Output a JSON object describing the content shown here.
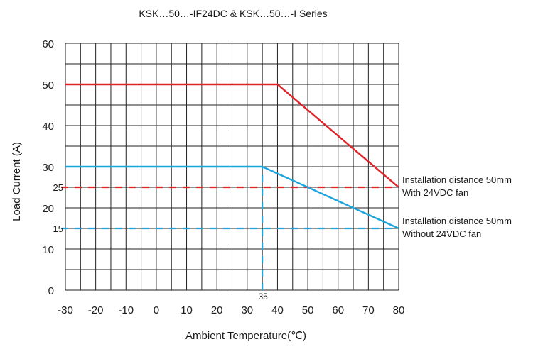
{
  "chart_data": {
    "type": "line",
    "title": "KSK…50…-IF24DC & KSK…50…-I Series",
    "xlabel": "Ambient Temperature(℃)",
    "ylabel": "Load Current (A)",
    "xlim": [
      -30,
      80
    ],
    "ylim": [
      0,
      60
    ],
    "x_ticks": [
      "-30",
      "-20",
      "-10",
      "0",
      "10",
      "20",
      "30",
      "40",
      "50",
      "60",
      "70",
      "80"
    ],
    "x_tick_values": [
      -30,
      -20,
      -10,
      0,
      10,
      20,
      30,
      40,
      50,
      60,
      70,
      80
    ],
    "y_ticks": [
      "0",
      "10",
      "20",
      "30",
      "40",
      "50",
      "60"
    ],
    "y_tick_values": [
      0,
      10,
      20,
      30,
      40,
      50,
      60
    ],
    "grid": true,
    "series": [
      {
        "name": "Installation distance 50mm With 24VDC fan",
        "color": "#e02329",
        "x": [
          -30,
          40,
          80
        ],
        "y": [
          50,
          50,
          25
        ]
      },
      {
        "name": "Installation distance 50mm Without 24VDC fan",
        "color": "#1ea6dc",
        "x": [
          -30,
          35,
          80
        ],
        "y": [
          30,
          30,
          15
        ]
      }
    ],
    "reference_lines": [
      {
        "label": "25",
        "color": "#e02329",
        "orientation": "horizontal",
        "value": 25
      },
      {
        "label": "15",
        "color": "#1ea6dc",
        "orientation": "horizontal",
        "value": 15
      },
      {
        "label": "35",
        "color": "#1ea6dc",
        "orientation": "vertical",
        "value": 35,
        "from": 0,
        "to": 30
      }
    ],
    "annotations": [
      {
        "series": 0,
        "lines": [
          "Installation distance 50mm",
          "With 24VDC fan"
        ]
      },
      {
        "series": 1,
        "lines": [
          "Installation distance 50mm",
          "Without 24VDC fan"
        ]
      }
    ]
  }
}
